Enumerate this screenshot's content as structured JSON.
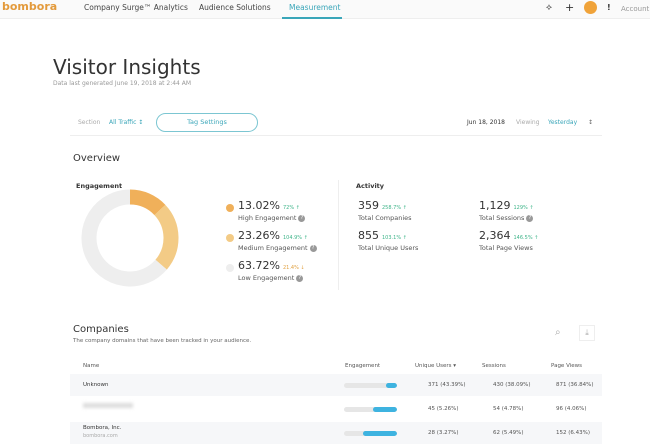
{
  "nav": {
    "logo": "bombora",
    "items": [
      "Company Surge™ Analytics",
      "Audience Solutions",
      "Measurement"
    ],
    "active": "Measurement",
    "account": "Account"
  },
  "page": {
    "title": "Visitor Insights",
    "subtitle": "Data last generated June 19, 2018 at 2:44 AM"
  },
  "toolbar": {
    "section_label": "Section",
    "section_value": "All Traffic ↕",
    "tag_settings": "Tag Settings",
    "date": "Jun 18, 2018",
    "viewing_label": "Viewing",
    "viewing_value": "Yesterday"
  },
  "overview": {
    "title": "Overview",
    "engagement_label": "Engagement",
    "activity_label": "Activity",
    "engagement": [
      {
        "value": "13.02%",
        "change": "72% ↑",
        "label": "High Engagement",
        "color": "#f0b05a",
        "pct": 13.02
      },
      {
        "value": "23.26%",
        "change": "104.9% ↑",
        "label": "Medium Engagement",
        "color": "#f3cb86",
        "pct": 23.26
      },
      {
        "value": "63.72%",
        "change": "21.4% ↓",
        "label": "Low Engagement",
        "color": "#eeeeee",
        "pct": 63.72
      }
    ],
    "activity": [
      {
        "value": "359",
        "change": "258.7% ↑",
        "label": "Total Companies"
      },
      {
        "value": "1,129",
        "change": "129% ↑",
        "label": "Total Sessions"
      },
      {
        "value": "855",
        "change": "103.1% ↑",
        "label": "Total Unique Users"
      },
      {
        "value": "2,364",
        "change": "146.5% ↑",
        "label": "Total Page Views"
      }
    ]
  },
  "companies": {
    "title": "Companies",
    "subtitle": "The company domains that have been tracked in your audience.",
    "headers": [
      "Name",
      "Engagement",
      "Unique Users ▾",
      "Sessions",
      "Page Views"
    ],
    "rows": [
      {
        "name": "Unknown",
        "domain": "",
        "engagement": 0.2,
        "users": "371 (43.39%)",
        "sessions": "430 (38.09%)",
        "views": "871 (36.84%)"
      },
      {
        "name": "",
        "domain": "",
        "engagement": 0.45,
        "users": "45 (5.26%)",
        "sessions": "54 (4.78%)",
        "views": "96 (4.06%)"
      },
      {
        "name": "Bombora, Inc.",
        "domain": "bombora.com",
        "engagement": 0.65,
        "users": "28 (3.27%)",
        "sessions": "62 (5.49%)",
        "views": "152 (6.43%)"
      }
    ]
  }
}
